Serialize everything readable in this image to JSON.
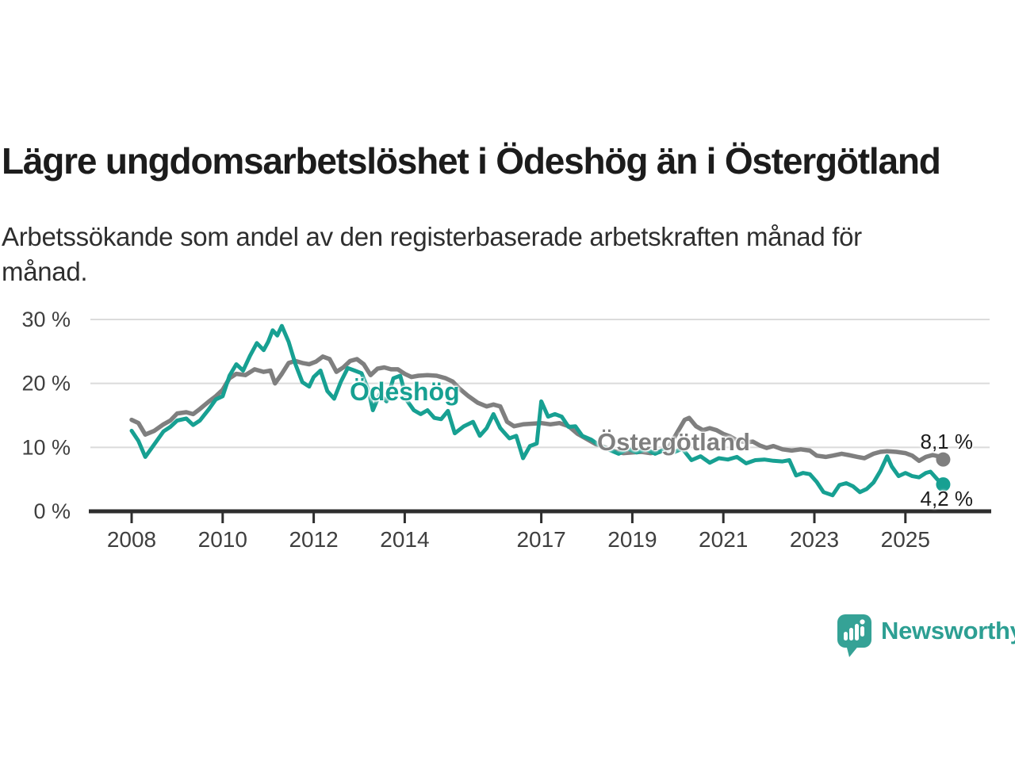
{
  "header": {
    "title": "Lägre ungdomsarbetslöshet i Ödeshög än i Östergötland",
    "subtitle": "Arbetssökande som andel av den registerbaserade arbetskraften månad för månad."
  },
  "chart_data": {
    "type": "line",
    "title": "Lägre ungdomsarbetslöshet i Ödeshög än i Östergötland",
    "xlabel": "",
    "ylabel": "",
    "unit": "%",
    "x_range": [
      2008,
      2025.83
    ],
    "ylim": [
      0,
      30
    ],
    "grid": "horizontal",
    "legend_position": "inline-labels-on-lines",
    "colors": {
      "odeshog": "#17a092",
      "ostergotland": "#7f7f7f",
      "grid": "#dbdbdb",
      "axis": "#2e2e2e",
      "tick_text": "#3f3f3f"
    },
    "y_ticks": [
      {
        "value": 0,
        "label": "0 %"
      },
      {
        "value": 10,
        "label": "10 %"
      },
      {
        "value": 20,
        "label": "20 %"
      },
      {
        "value": 30,
        "label": "30 %"
      }
    ],
    "x_ticks": [
      {
        "value": 2008,
        "label": "2008"
      },
      {
        "value": 2010,
        "label": "2010"
      },
      {
        "value": 2012,
        "label": "2012"
      },
      {
        "value": 2014,
        "label": "2014"
      },
      {
        "value": 2017,
        "label": "2017"
      },
      {
        "value": 2019,
        "label": "2019"
      },
      {
        "value": 2021,
        "label": "2021"
      },
      {
        "value": 2023,
        "label": "2023"
      },
      {
        "value": 2025,
        "label": "2025"
      }
    ],
    "series": [
      {
        "name": "Östergötland",
        "color": "#7f7f7f",
        "line_width": 5.5,
        "end": {
          "value": 8.1,
          "label": "8,1 %"
        },
        "points": [
          [
            2008.0,
            14.3
          ],
          [
            2008.15,
            13.8
          ],
          [
            2008.3,
            12.0
          ],
          [
            2008.5,
            12.6
          ],
          [
            2008.7,
            13.6
          ],
          [
            2008.85,
            14.2
          ],
          [
            2009.0,
            15.3
          ],
          [
            2009.2,
            15.5
          ],
          [
            2009.35,
            15.2
          ],
          [
            2009.5,
            16.0
          ],
          [
            2009.7,
            17.2
          ],
          [
            2009.85,
            18.0
          ],
          [
            2010.0,
            19.0
          ],
          [
            2010.15,
            20.8
          ],
          [
            2010.3,
            21.5
          ],
          [
            2010.5,
            21.3
          ],
          [
            2010.7,
            22.2
          ],
          [
            2010.9,
            21.8
          ],
          [
            2011.05,
            22.0
          ],
          [
            2011.15,
            20.0
          ],
          [
            2011.3,
            21.5
          ],
          [
            2011.45,
            23.2
          ],
          [
            2011.6,
            23.5
          ],
          [
            2011.75,
            23.2
          ],
          [
            2011.9,
            23.0
          ],
          [
            2012.05,
            23.4
          ],
          [
            2012.2,
            24.2
          ],
          [
            2012.35,
            23.8
          ],
          [
            2012.5,
            21.8
          ],
          [
            2012.65,
            22.5
          ],
          [
            2012.8,
            23.5
          ],
          [
            2012.95,
            23.8
          ],
          [
            2013.1,
            23.0
          ],
          [
            2013.25,
            21.3
          ],
          [
            2013.4,
            22.3
          ],
          [
            2013.55,
            22.5
          ],
          [
            2013.7,
            22.2
          ],
          [
            2013.85,
            22.2
          ],
          [
            2014.0,
            21.5
          ],
          [
            2014.15,
            21.0
          ],
          [
            2014.3,
            21.2
          ],
          [
            2014.5,
            21.3
          ],
          [
            2014.7,
            21.2
          ],
          [
            2014.9,
            20.8
          ],
          [
            2015.05,
            20.3
          ],
          [
            2015.2,
            19.2
          ],
          [
            2015.4,
            18.0
          ],
          [
            2015.6,
            17.0
          ],
          [
            2015.8,
            16.4
          ],
          [
            2015.95,
            16.7
          ],
          [
            2016.1,
            16.4
          ],
          [
            2016.25,
            14.0
          ],
          [
            2016.4,
            13.3
          ],
          [
            2016.6,
            13.6
          ],
          [
            2016.8,
            13.7
          ],
          [
            2017.0,
            13.8
          ],
          [
            2017.2,
            13.6
          ],
          [
            2017.4,
            13.8
          ],
          [
            2017.6,
            13.3
          ],
          [
            2017.8,
            12.1
          ],
          [
            2018.0,
            11.3
          ],
          [
            2018.2,
            10.5
          ],
          [
            2018.4,
            10.0
          ],
          [
            2018.6,
            9.4
          ],
          [
            2018.8,
            9.1
          ],
          [
            2019.0,
            9.2
          ],
          [
            2019.2,
            9.3
          ],
          [
            2019.4,
            9.1
          ],
          [
            2019.6,
            9.3
          ],
          [
            2019.8,
            10.0
          ],
          [
            2020.0,
            12.5
          ],
          [
            2020.15,
            14.3
          ],
          [
            2020.25,
            14.6
          ],
          [
            2020.4,
            13.3
          ],
          [
            2020.55,
            12.7
          ],
          [
            2020.7,
            13.0
          ],
          [
            2020.85,
            12.7
          ],
          [
            2021.0,
            12.1
          ],
          [
            2021.15,
            11.7
          ],
          [
            2021.3,
            11.1
          ],
          [
            2021.5,
            10.8
          ],
          [
            2021.65,
            10.9
          ],
          [
            2021.8,
            10.3
          ],
          [
            2021.95,
            9.9
          ],
          [
            2022.1,
            10.2
          ],
          [
            2022.3,
            9.7
          ],
          [
            2022.5,
            9.5
          ],
          [
            2022.7,
            9.7
          ],
          [
            2022.9,
            9.5
          ],
          [
            2023.05,
            8.7
          ],
          [
            2023.25,
            8.5
          ],
          [
            2023.4,
            8.7
          ],
          [
            2023.6,
            9.0
          ],
          [
            2023.75,
            8.8
          ],
          [
            2023.95,
            8.5
          ],
          [
            2024.1,
            8.3
          ],
          [
            2024.3,
            9.0
          ],
          [
            2024.45,
            9.3
          ],
          [
            2024.6,
            9.4
          ],
          [
            2024.8,
            9.3
          ],
          [
            2025.0,
            9.1
          ],
          [
            2025.15,
            8.7
          ],
          [
            2025.3,
            7.9
          ],
          [
            2025.45,
            8.5
          ],
          [
            2025.6,
            8.8
          ],
          [
            2025.72,
            8.6
          ],
          [
            2025.83,
            8.1
          ]
        ]
      },
      {
        "name": "Ödeshög",
        "color": "#17a092",
        "line_width": 5,
        "end": {
          "value": 4.2,
          "label": "4,2 %"
        },
        "points": [
          [
            2008.0,
            12.6
          ],
          [
            2008.15,
            11.0
          ],
          [
            2008.3,
            8.5
          ],
          [
            2008.5,
            10.5
          ],
          [
            2008.7,
            12.5
          ],
          [
            2008.85,
            13.2
          ],
          [
            2009.0,
            14.2
          ],
          [
            2009.2,
            14.5
          ],
          [
            2009.35,
            13.5
          ],
          [
            2009.5,
            14.2
          ],
          [
            2009.7,
            16.0
          ],
          [
            2009.85,
            17.5
          ],
          [
            2010.0,
            18.0
          ],
          [
            2010.15,
            21.2
          ],
          [
            2010.3,
            23.0
          ],
          [
            2010.45,
            22.0
          ],
          [
            2010.6,
            24.3
          ],
          [
            2010.75,
            26.3
          ],
          [
            2010.9,
            25.2
          ],
          [
            2011.0,
            26.5
          ],
          [
            2011.1,
            28.3
          ],
          [
            2011.2,
            27.5
          ],
          [
            2011.3,
            29.0
          ],
          [
            2011.45,
            26.5
          ],
          [
            2011.6,
            23.0
          ],
          [
            2011.75,
            20.2
          ],
          [
            2011.9,
            19.5
          ],
          [
            2012.0,
            21.0
          ],
          [
            2012.15,
            22.0
          ],
          [
            2012.3,
            18.8
          ],
          [
            2012.45,
            17.6
          ],
          [
            2012.6,
            20.3
          ],
          [
            2012.75,
            22.4
          ],
          [
            2012.9,
            22.0
          ],
          [
            2013.05,
            21.6
          ],
          [
            2013.2,
            19.0
          ],
          [
            2013.3,
            15.8
          ],
          [
            2013.45,
            18.3
          ],
          [
            2013.6,
            17.2
          ],
          [
            2013.75,
            20.8
          ],
          [
            2013.9,
            21.2
          ],
          [
            2014.05,
            17.3
          ],
          [
            2014.2,
            15.8
          ],
          [
            2014.35,
            15.2
          ],
          [
            2014.5,
            15.8
          ],
          [
            2014.65,
            14.6
          ],
          [
            2014.8,
            14.4
          ],
          [
            2014.95,
            15.7
          ],
          [
            2015.1,
            12.2
          ],
          [
            2015.3,
            13.3
          ],
          [
            2015.5,
            14.0
          ],
          [
            2015.65,
            11.8
          ],
          [
            2015.8,
            13.0
          ],
          [
            2015.95,
            15.2
          ],
          [
            2016.1,
            13.0
          ],
          [
            2016.3,
            11.4
          ],
          [
            2016.45,
            11.8
          ],
          [
            2016.6,
            8.3
          ],
          [
            2016.75,
            10.2
          ],
          [
            2016.9,
            10.6
          ],
          [
            2017.0,
            17.2
          ],
          [
            2017.15,
            14.8
          ],
          [
            2017.3,
            15.2
          ],
          [
            2017.45,
            14.8
          ],
          [
            2017.6,
            13.2
          ],
          [
            2017.75,
            13.3
          ],
          [
            2017.9,
            11.8
          ],
          [
            2018.1,
            11.2
          ],
          [
            2018.3,
            10.2
          ],
          [
            2018.5,
            9.6
          ],
          [
            2018.7,
            9.0
          ],
          [
            2018.9,
            9.8
          ],
          [
            2019.1,
            9.2
          ],
          [
            2019.3,
            9.7
          ],
          [
            2019.5,
            9.0
          ],
          [
            2019.7,
            9.6
          ],
          [
            2019.9,
            9.2
          ],
          [
            2020.1,
            9.8
          ],
          [
            2020.3,
            8.0
          ],
          [
            2020.5,
            8.6
          ],
          [
            2020.7,
            7.6
          ],
          [
            2020.9,
            8.3
          ],
          [
            2021.1,
            8.1
          ],
          [
            2021.3,
            8.5
          ],
          [
            2021.5,
            7.5
          ],
          [
            2021.7,
            8.0
          ],
          [
            2021.9,
            8.1
          ],
          [
            2022.1,
            7.9
          ],
          [
            2022.3,
            7.8
          ],
          [
            2022.45,
            8.0
          ],
          [
            2022.6,
            5.6
          ],
          [
            2022.75,
            6.0
          ],
          [
            2022.9,
            5.8
          ],
          [
            2023.05,
            4.6
          ],
          [
            2023.2,
            3.0
          ],
          [
            2023.4,
            2.5
          ],
          [
            2023.55,
            4.1
          ],
          [
            2023.7,
            4.4
          ],
          [
            2023.85,
            3.9
          ],
          [
            2024.0,
            3.0
          ],
          [
            2024.15,
            3.5
          ],
          [
            2024.3,
            4.5
          ],
          [
            2024.45,
            6.3
          ],
          [
            2024.6,
            8.6
          ],
          [
            2024.7,
            7.0
          ],
          [
            2024.85,
            5.5
          ],
          [
            2025.0,
            6.0
          ],
          [
            2025.15,
            5.5
          ],
          [
            2025.3,
            5.3
          ],
          [
            2025.45,
            6.0
          ],
          [
            2025.55,
            6.2
          ],
          [
            2025.7,
            5.0
          ],
          [
            2025.83,
            4.2
          ]
        ]
      }
    ],
    "series_labels": [
      {
        "text": "Ödeshög",
        "color": "#17a092"
      },
      {
        "text": "Östergötland",
        "color": "#7f7f7f"
      }
    ]
  },
  "branding": {
    "name": "Newsworthy",
    "color": "#2d9f93",
    "icon": "bar-chart-speech-bubble-icon"
  }
}
